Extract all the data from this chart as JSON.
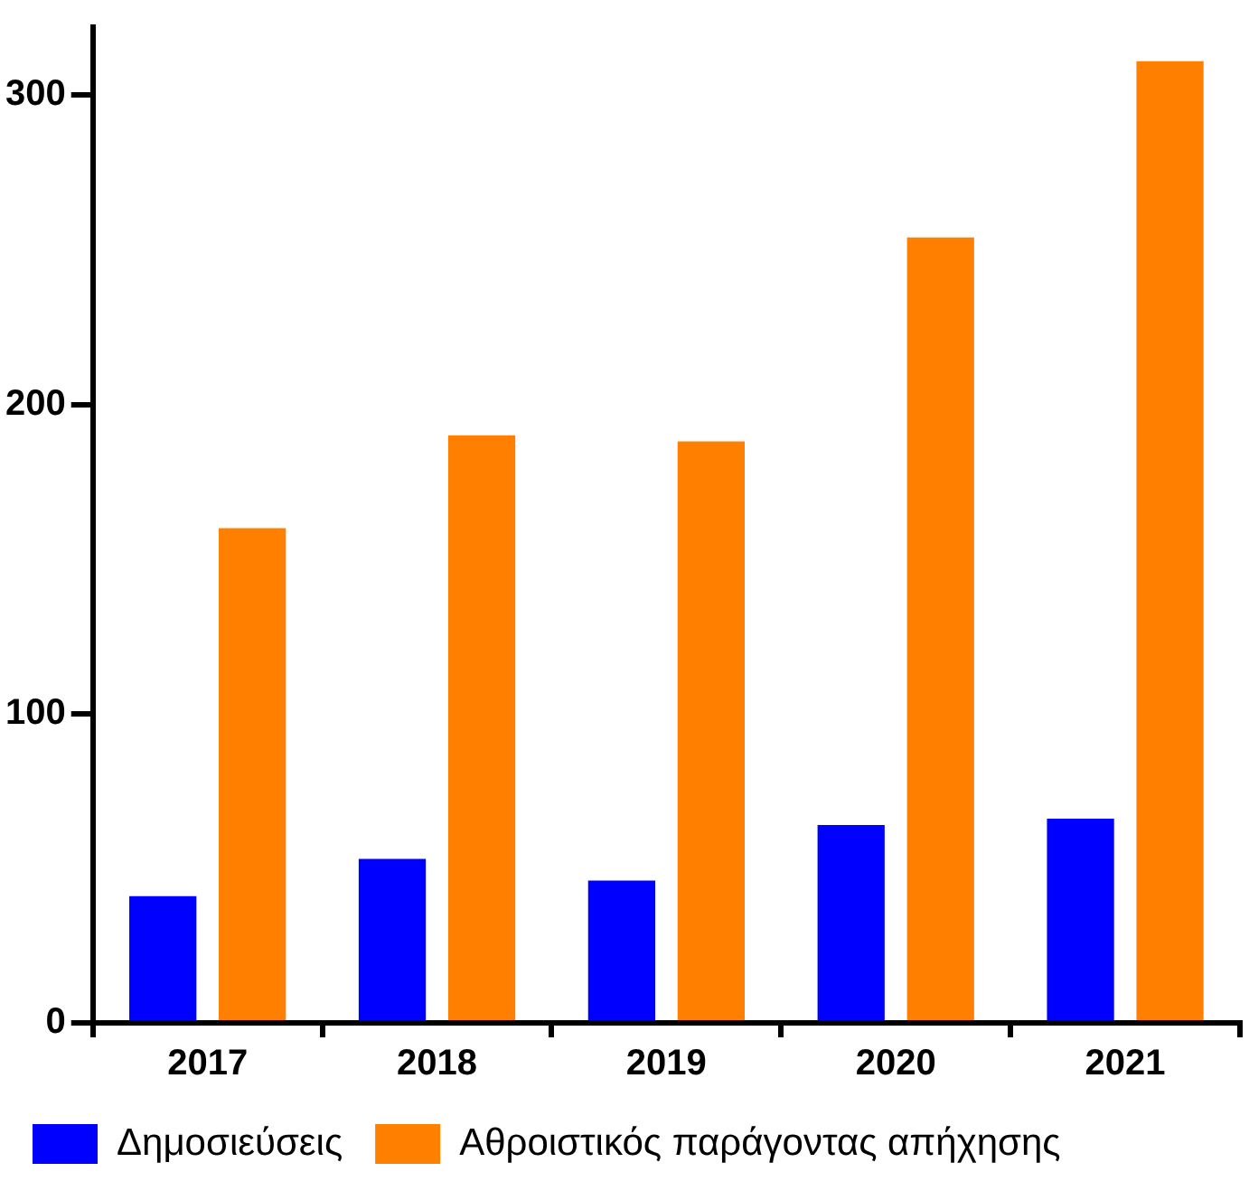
{
  "chart_data": {
    "type": "bar",
    "categories": [
      "2017",
      "2018",
      "2019",
      "2020",
      "2021"
    ],
    "series": [
      {
        "name": "Δημοσιεύσεις",
        "color": "#0000ff",
        "values": [
          41,
          53,
          46,
          64,
          66
        ]
      },
      {
        "name": "Αθροιστικός παράγοντας απήχησης",
        "color": "#ff8000",
        "values": [
          160,
          190,
          188,
          254,
          311
        ]
      }
    ],
    "ylim": [
      0,
      322
    ],
    "yticks": [
      0,
      100,
      200,
      300
    ],
    "grid": false,
    "legend": "bottom"
  }
}
